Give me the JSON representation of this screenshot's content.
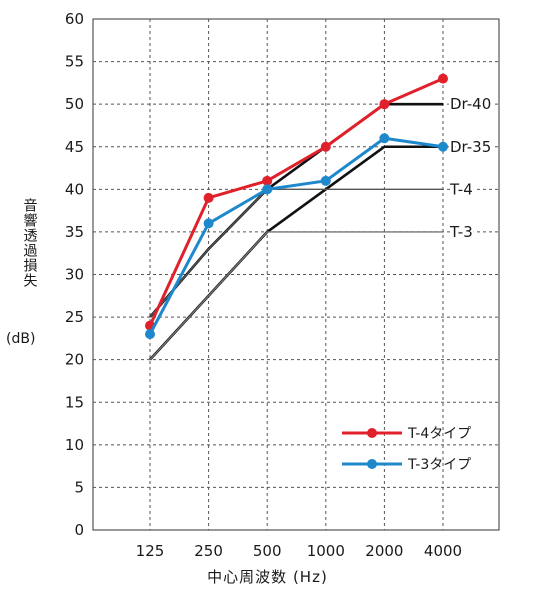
{
  "chart_data": {
    "type": "line",
    "categories": [
      "125",
      "250",
      "500",
      "1000",
      "2000",
      "4000"
    ],
    "ylim": [
      0,
      60
    ],
    "yticks": [
      0,
      5,
      10,
      15,
      20,
      25,
      30,
      35,
      40,
      45,
      50,
      55,
      60
    ],
    "ylabel": "音響透過損失",
    "ylabel_unit": "(dB)",
    "xlabel": "中心周波数 (Hz)",
    "grid": true,
    "legend_position": "bottom-right",
    "series": [
      {
        "name": "T-4タイプ",
        "color": "#e0202a",
        "values": [
          24,
          39,
          41,
          45,
          50,
          53
        ]
      },
      {
        "name": "T-3タイプ",
        "color": "#1e88cc",
        "values": [
          23,
          36,
          40,
          41,
          46,
          45
        ]
      }
    ],
    "reference_curves": [
      {
        "name": "Dr-40",
        "color": "#111111",
        "values": [
          25,
          33,
          40,
          45,
          50,
          50
        ]
      },
      {
        "name": "Dr-35",
        "color": "#111111",
        "values": [
          20,
          27.5,
          35,
          40,
          45,
          45
        ]
      },
      {
        "name": "T-4",
        "color": "#555555",
        "values": [
          25,
          33,
          40,
          40,
          40,
          40
        ]
      },
      {
        "name": "T-3",
        "color": "#777777",
        "values": [
          20,
          27.5,
          35,
          35,
          35,
          35
        ]
      }
    ]
  }
}
